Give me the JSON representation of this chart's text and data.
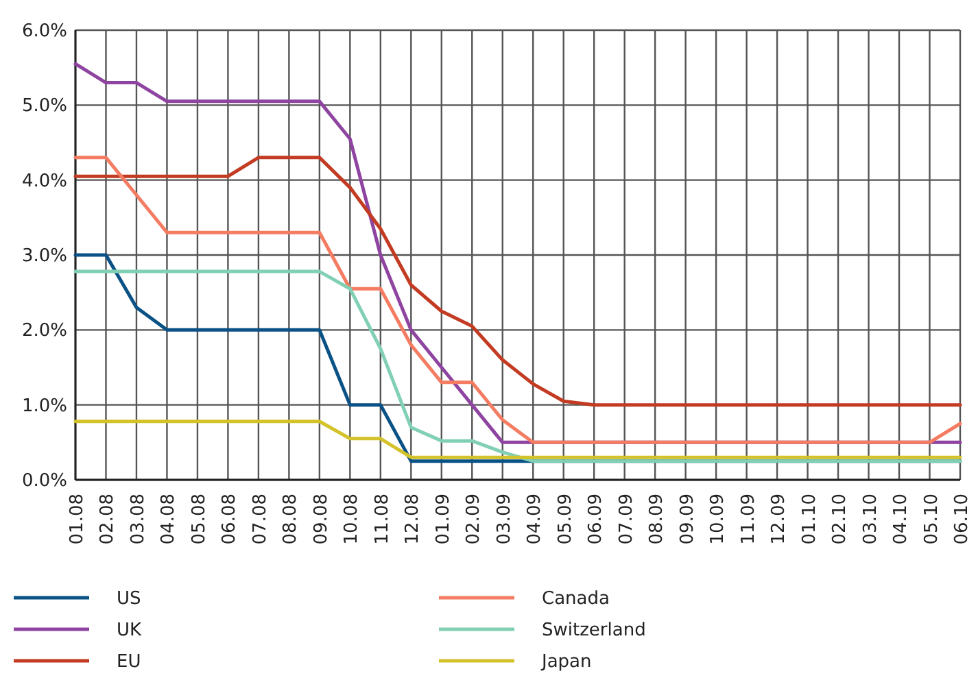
{
  "chart_data": {
    "type": "line",
    "categories": [
      "01.08",
      "02.08",
      "03.08",
      "04.08",
      "05.08",
      "06.08",
      "07.08",
      "08.08",
      "09.08",
      "10.08",
      "11.08",
      "12.08",
      "01.09",
      "02.09",
      "03.09",
      "04.09",
      "05.09",
      "06.09",
      "07.09",
      "08.09",
      "09.09",
      "10.09",
      "11.09",
      "12.09",
      "01.10",
      "02.10",
      "03.10",
      "04.10",
      "05.10",
      "06.10"
    ],
    "series": [
      {
        "name": "US",
        "color": "#0a5286",
        "values": [
          3.0,
          3.0,
          2.3,
          2.0,
          2.0,
          2.0,
          2.0,
          2.0,
          2.0,
          1.0,
          1.0,
          0.25,
          0.25,
          0.25,
          0.25,
          0.25,
          0.25,
          0.25,
          0.25,
          0.25,
          0.25,
          0.25,
          0.25,
          0.25,
          0.25,
          0.25,
          0.25,
          0.25,
          0.25,
          0.25
        ]
      },
      {
        "name": "UK",
        "color": "#8e44a0",
        "values": [
          5.55,
          5.3,
          5.3,
          5.05,
          5.05,
          5.05,
          5.05,
          5.05,
          5.05,
          4.55,
          3.0,
          2.0,
          1.5,
          1.0,
          0.5,
          0.5,
          0.5,
          0.5,
          0.5,
          0.5,
          0.5,
          0.5,
          0.5,
          0.5,
          0.5,
          0.5,
          0.5,
          0.5,
          0.5,
          0.5
        ]
      },
      {
        "name": "EU",
        "color": "#c23b22",
        "values": [
          4.05,
          4.05,
          4.05,
          4.05,
          4.05,
          4.05,
          4.3,
          4.3,
          4.3,
          3.9,
          3.35,
          2.6,
          2.25,
          2.05,
          1.6,
          1.28,
          1.05,
          1.0,
          1.0,
          1.0,
          1.0,
          1.0,
          1.0,
          1.0,
          1.0,
          1.0,
          1.0,
          1.0,
          1.0,
          1.0
        ]
      },
      {
        "name": "Canada",
        "color": "#f47c62",
        "values": [
          4.3,
          4.3,
          3.8,
          3.3,
          3.3,
          3.3,
          3.3,
          3.3,
          3.3,
          2.55,
          2.55,
          1.8,
          1.3,
          1.3,
          0.8,
          0.5,
          0.5,
          0.5,
          0.5,
          0.5,
          0.5,
          0.5,
          0.5,
          0.5,
          0.5,
          0.5,
          0.5,
          0.5,
          0.5,
          0.75
        ]
      },
      {
        "name": "Switzerland",
        "color": "#82d0b4",
        "values": [
          2.78,
          2.78,
          2.78,
          2.78,
          2.78,
          2.78,
          2.78,
          2.78,
          2.78,
          2.55,
          1.75,
          0.7,
          0.52,
          0.52,
          0.37,
          0.25,
          0.25,
          0.25,
          0.25,
          0.25,
          0.25,
          0.25,
          0.25,
          0.25,
          0.25,
          0.25,
          0.25,
          0.25,
          0.25,
          0.25
        ]
      },
      {
        "name": "Japan",
        "color": "#d4c22a",
        "values": [
          0.78,
          0.78,
          0.78,
          0.78,
          0.78,
          0.78,
          0.78,
          0.78,
          0.78,
          0.55,
          0.55,
          0.3,
          0.3,
          0.3,
          0.3,
          0.3,
          0.3,
          0.3,
          0.3,
          0.3,
          0.3,
          0.3,
          0.3,
          0.3,
          0.3,
          0.3,
          0.3,
          0.3,
          0.3,
          0.3
        ]
      }
    ],
    "ylim": [
      0,
      6
    ],
    "yticks": [
      {
        "value": 0,
        "label": "0.0%"
      },
      {
        "value": 1,
        "label": "1.0%"
      },
      {
        "value": 2,
        "label": "2.0%"
      },
      {
        "value": 3,
        "label": "3.0%"
      },
      {
        "value": 4,
        "label": "4.0%"
      },
      {
        "value": 5,
        "label": "5.0%"
      },
      {
        "value": 6,
        "label": "6.0%"
      }
    ],
    "grid": true,
    "legend": "bottom",
    "marker": "none",
    "line_style": "solid"
  }
}
